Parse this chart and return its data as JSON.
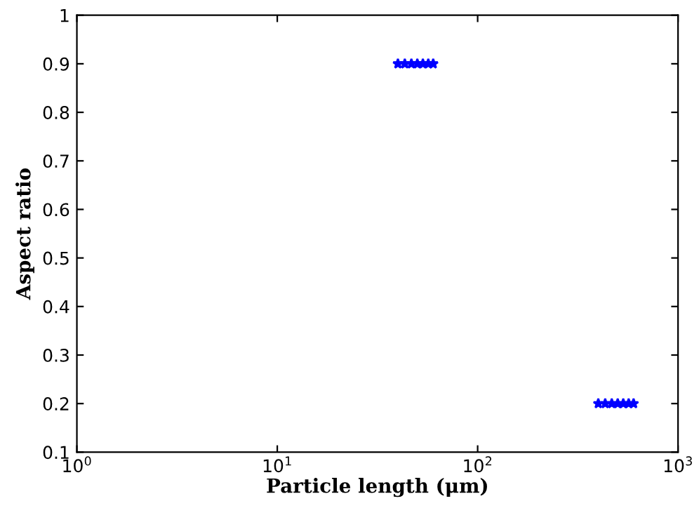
{
  "chart_data": {
    "type": "scatter",
    "xlabel": "Particle length (μm)",
    "ylabel": "Aspect ratio",
    "log": "x",
    "marker": "star",
    "grid": false,
    "legend": false,
    "series": [
      {
        "color": "#0000ff",
        "x": [
          40,
          43.3,
          46.7,
          50,
          53.3,
          56.7,
          60
        ],
        "values": [
          0.9,
          0.9,
          0.9,
          0.9,
          0.9,
          0.9,
          0.9
        ]
      },
      {
        "color": "#0000ff",
        "x": [
          400,
          433,
          467,
          500,
          533,
          567,
          600
        ],
        "values": [
          0.2,
          0.2,
          0.2,
          0.2,
          0.2,
          0.2,
          0.2
        ]
      }
    ],
    "xlim": [
      1,
      1000
    ],
    "xticks": [
      {
        "value": 1,
        "label": "10$^{0}$"
      },
      {
        "value": 10,
        "label": "10$^{1}$"
      },
      {
        "value": 100,
        "label": "10$^{2}$"
      },
      {
        "value": 1000,
        "label": "10$^{3}$"
      }
    ],
    "ylim": [
      0.1,
      1
    ],
    "yticks": [
      0.1,
      0.2,
      0.3,
      0.4,
      0.5,
      0.6,
      0.7,
      0.8,
      0.9,
      1
    ]
  }
}
